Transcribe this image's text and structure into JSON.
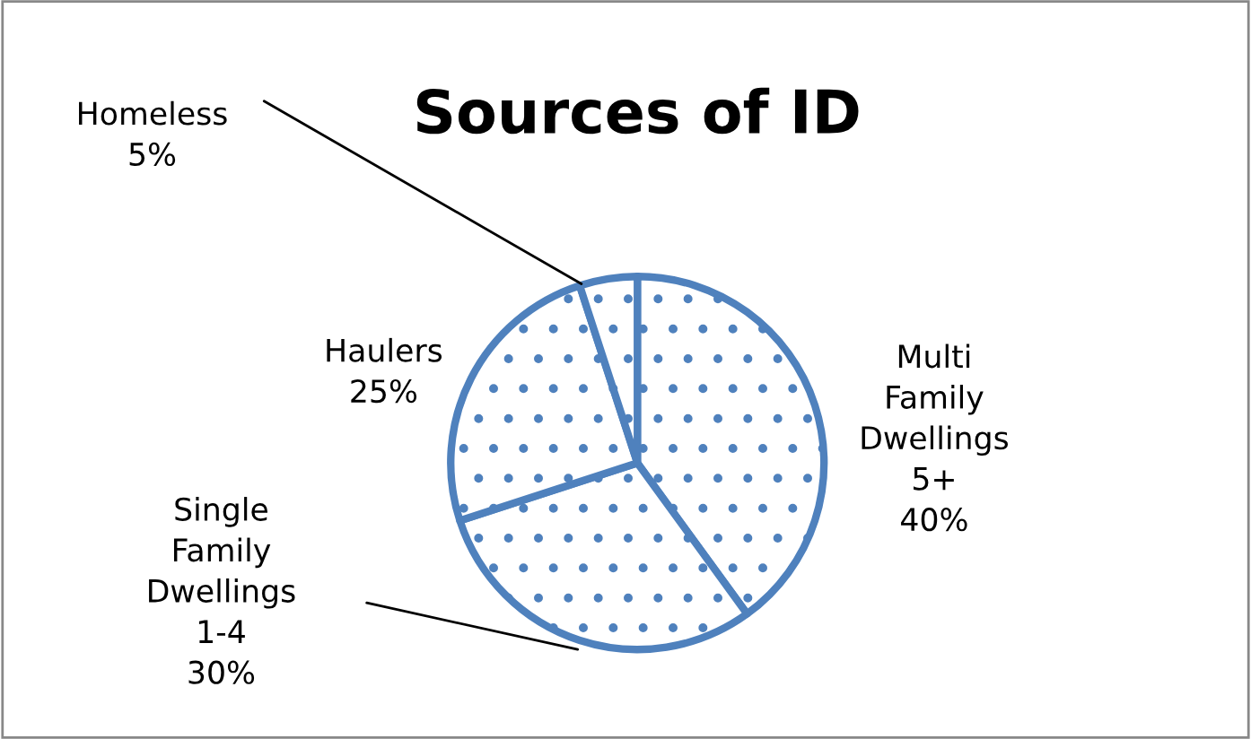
{
  "chart_data": {
    "type": "pie",
    "title": "Sources of ID",
    "categories": [
      "Multi Family Dwellings 5+",
      "Single Family Dwellings 1-4",
      "Haulers",
      "Homeless"
    ],
    "values": [
      40,
      30,
      25,
      5
    ],
    "value_labels": [
      "40%",
      "30%",
      "25%",
      "5%"
    ],
    "colors": [
      "#4f81bd",
      "#4f81bd",
      "#4f81bd",
      "#4f81bd"
    ],
    "legend": false
  }
}
